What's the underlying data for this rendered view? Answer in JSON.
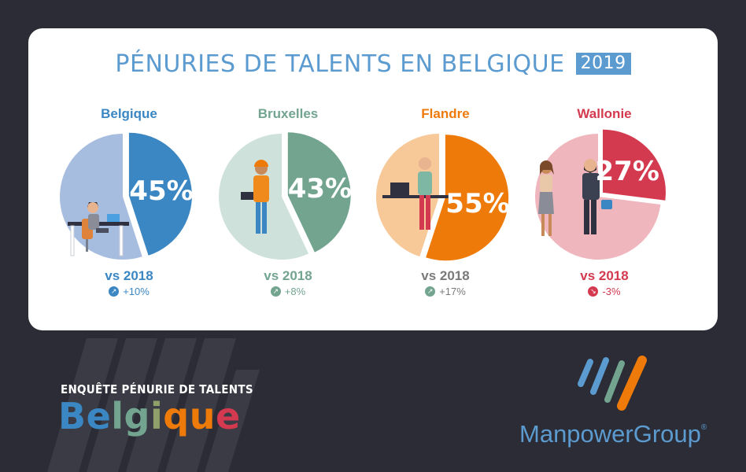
{
  "header": {
    "title": "PÉNURIES DE TALENTS EN BELGIQUE",
    "year": "2019"
  },
  "colors": {
    "background": "#2b2c35",
    "card": "#ffffff",
    "title": "#5b9bd0"
  },
  "chart_data": {
    "type": "pie",
    "regions": [
      {
        "name": "Belgique",
        "value": 45,
        "label": "45%",
        "compare_label": "vs 2018",
        "change": "+10%",
        "trend": "up",
        "color": "#3b87c3",
        "light_color": "#a7bde0",
        "illustration": "office-worker-illustration"
      },
      {
        "name": "Bruxelles",
        "value": 43,
        "label": "43%",
        "compare_label": "vs 2018",
        "change": "+8%",
        "trend": "up",
        "color": "#72a490",
        "light_color": "#cfe1db",
        "illustration": "construction-worker-illustration"
      },
      {
        "name": "Flandre",
        "value": 55,
        "label": "55%",
        "compare_label": "vs 2018",
        "change": "+17%",
        "trend": "up",
        "color": "#ee7a0a",
        "light_color": "#f7c898",
        "illustration": "standing-desk-worker-illustration"
      },
      {
        "name": "Wallonie",
        "value": 27,
        "label": "27%",
        "compare_label": "vs 2018",
        "change": "-3%",
        "trend": "down",
        "color": "#d43a4f",
        "light_color": "#f0b6bd",
        "illustration": "handshake-illustration"
      }
    ]
  },
  "footer": {
    "survey_label": "ENQUÊTE PÉNURIE DE TALENTS",
    "country": "Belgique",
    "country_colors": [
      "#3b87c3",
      "#72a490",
      "#8fa06a",
      "#ee7a0a",
      "#d43a4f"
    ],
    "brand": "ManpowerGroup",
    "brand_mark": "®"
  }
}
